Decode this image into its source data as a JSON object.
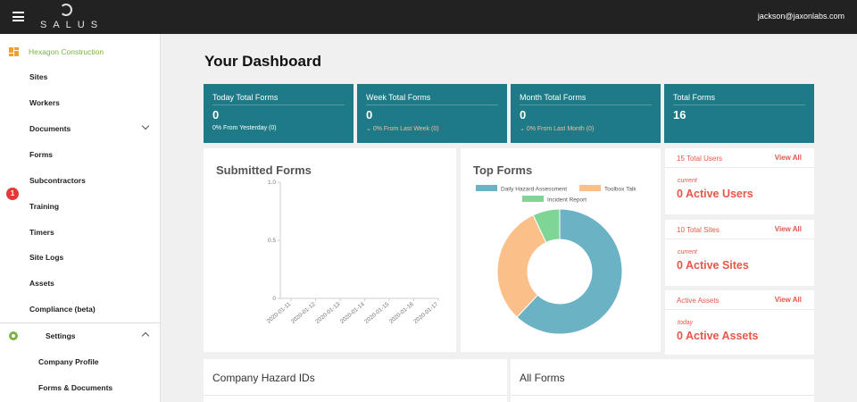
{
  "app": {
    "logo_text": "SALUS",
    "user_email": "jackson@jaxonlabs.com"
  },
  "sidebar": {
    "org_name": "Hexagon Construction",
    "items": [
      {
        "label": "Sites"
      },
      {
        "label": "Workers"
      },
      {
        "label": "Documents"
      },
      {
        "label": "Forms"
      },
      {
        "label": "Subcontractors"
      },
      {
        "label": "Training"
      },
      {
        "label": "Timers"
      },
      {
        "label": "Site Logs"
      },
      {
        "label": "Assets"
      },
      {
        "label": "Compliance (beta)"
      }
    ],
    "training_badge": "1",
    "settings_label": "Settings",
    "settings_items": [
      {
        "label": "Company Profile"
      },
      {
        "label": "Forms & Documents"
      }
    ]
  },
  "dashboard": {
    "title": "Your Dashboard",
    "stats": [
      {
        "title": "Today Total Forms",
        "value": "0",
        "delta": "0% From Yesterday (0)"
      },
      {
        "title": "Week Total Forms",
        "value": "0",
        "delta": "0% From Last Week (0)"
      },
      {
        "title": "Month Total Forms",
        "value": "0",
        "delta": "0% From Last Month (0)"
      },
      {
        "title": "Total Forms",
        "value": "16",
        "delta": ""
      }
    ],
    "submitted_forms_title": "Submitted Forms",
    "top_forms_title": "Top Forms",
    "hazard_ids_title": "Company Hazard IDs",
    "all_forms_title": "All Forms",
    "users": {
      "header": "15 Total Users",
      "link": "View All",
      "caption": "current",
      "value": "0 Active Users"
    },
    "sites": {
      "header": "10 Total Sites",
      "link": "View All",
      "caption": "current",
      "value": "0 Active Sites"
    },
    "assets": {
      "header": "Active Assets",
      "link": "View All",
      "caption": "today",
      "value": "0 Active Assets"
    }
  },
  "chart_data": [
    {
      "type": "line",
      "title": "Submitted Forms",
      "x": [
        "2020-01-11",
        "2020-01-12",
        "2020-01-13",
        "2020-01-14",
        "2020-01-15",
        "2020-01-16",
        "2020-01-17"
      ],
      "y_ticks": [
        "1.0",
        "0.5",
        "0"
      ],
      "ylim": [
        0,
        1
      ],
      "series": [
        {
          "values": [
            0,
            0,
            0,
            0,
            0,
            0,
            0
          ]
        }
      ]
    },
    {
      "type": "pie",
      "title": "Top Forms",
      "legend_position": "top",
      "labels": [
        "Daily Hazard Assessment",
        "Toolbox Talk",
        "Incident Report"
      ],
      "values": [
        62,
        31,
        7
      ],
      "colors": [
        "#6bb3c4",
        "#fbbf8a",
        "#7fd596"
      ]
    }
  ]
}
